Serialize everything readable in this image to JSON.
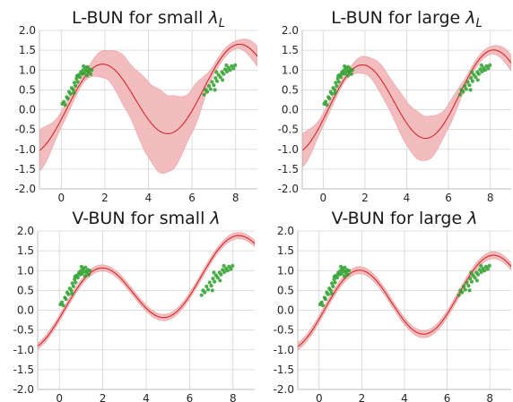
{
  "colors": {
    "mean": "#d62728",
    "band": "#f2b6b8",
    "band_edge": "#e8a0a3",
    "points": "#2ca02c",
    "grid": "#d4d4d4"
  },
  "chart_data": [
    {
      "type": "line",
      "title_prefix": "L-BUN for small ",
      "title_symbol": "λ",
      "title_subscript": "L",
      "xlim": [
        -1,
        9
      ],
      "ylim": [
        -2.0,
        2.0
      ],
      "xticks": [
        0,
        2,
        4,
        6,
        8
      ],
      "yticks": [
        "-2.0",
        "-1.5",
        "-1.0",
        "-0.5",
        "0.0",
        "0.5",
        "1.0",
        "1.5",
        "2.0"
      ],
      "grid": true,
      "mean": {
        "amp": 1.0,
        "slope": 0.08
      },
      "band_halfwidth": [
        [
          -1,
          0.52
        ],
        [
          0,
          0.2
        ],
        [
          1,
          0.1
        ],
        [
          2,
          0.35
        ],
        [
          3,
          0.65
        ],
        [
          4,
          0.95
        ],
        [
          4.5,
          1.05
        ],
        [
          5,
          0.95
        ],
        [
          6,
          0.55
        ],
        [
          7,
          0.12
        ],
        [
          8,
          0.1
        ],
        [
          9,
          0.25
        ]
      ],
      "points": "train"
    },
    {
      "type": "line",
      "title_prefix": "L-BUN for large ",
      "title_symbol": "λ",
      "title_subscript": "L",
      "xlim": [
        -1,
        9
      ],
      "ylim": [
        -2.0,
        2.0
      ],
      "xticks": [
        0,
        2,
        4,
        6,
        8
      ],
      "yticks": [
        "-2.0",
        "-1.5",
        "-1.0",
        "-0.5",
        "0.0",
        "0.5",
        "1.0",
        "1.5",
        "2.0"
      ],
      "grid": true,
      "mean": {
        "amp": 1.02,
        "slope": 0.06
      },
      "band_halfwidth": [
        [
          -1,
          0.42
        ],
        [
          0,
          0.16
        ],
        [
          1,
          0.08
        ],
        [
          2,
          0.22
        ],
        [
          3,
          0.4
        ],
        [
          4,
          0.55
        ],
        [
          4.5,
          0.6
        ],
        [
          5,
          0.55
        ],
        [
          6,
          0.3
        ],
        [
          7,
          0.1
        ],
        [
          8,
          0.1
        ],
        [
          9,
          0.2
        ]
      ],
      "points": "train"
    },
    {
      "type": "line",
      "title_prefix": "V-BUN for small ",
      "title_symbol": "λ",
      "title_subscript": "",
      "xlim": [
        -1,
        9
      ],
      "ylim": [
        -2.0,
        2.0
      ],
      "xticks": [
        0,
        2,
        4,
        6,
        8
      ],
      "yticks": [
        "-2.0",
        "-1.5",
        "-1.0",
        "-0.5",
        "0.0",
        "0.5",
        "1.0",
        "1.5",
        "2.0"
      ],
      "grid": true,
      "mean": {
        "amp": 0.82,
        "slope": 0.13
      },
      "band_halfwidth": [
        [
          -1,
          0.08
        ],
        [
          9,
          0.08
        ]
      ],
      "points": "train"
    },
    {
      "type": "line",
      "title_prefix": "V-BUN for large ",
      "title_symbol": "λ",
      "title_subscript": "",
      "xlim": [
        -1,
        9
      ],
      "ylim": [
        -2.0,
        2.0
      ],
      "xticks": [
        0,
        2,
        4,
        6,
        8
      ],
      "yticks": [
        "-2.0",
        "-1.5",
        "-1.0",
        "-0.5",
        "0.0",
        "0.5",
        "1.0",
        "1.5",
        "2.0"
      ],
      "grid": true,
      "mean": {
        "amp": 0.9,
        "slope": 0.06
      },
      "band_halfwidth": [
        [
          -1,
          0.09
        ],
        [
          9,
          0.09
        ]
      ],
      "points": "train"
    }
  ],
  "train_points": [
    [
      0.05,
      0.15
    ],
    [
      0.12,
      0.2
    ],
    [
      0.18,
      0.12
    ],
    [
      0.25,
      0.32
    ],
    [
      0.3,
      0.28
    ],
    [
      0.36,
      0.45
    ],
    [
      0.42,
      0.4
    ],
    [
      0.48,
      0.55
    ],
    [
      0.55,
      0.5
    ],
    [
      0.6,
      0.68
    ],
    [
      0.65,
      0.6
    ],
    [
      0.7,
      0.78
    ],
    [
      0.75,
      0.7
    ],
    [
      0.8,
      0.88
    ],
    [
      0.85,
      0.82
    ],
    [
      0.9,
      0.95
    ],
    [
      0.95,
      0.9
    ],
    [
      1.0,
      1.0
    ],
    [
      1.05,
      0.92
    ],
    [
      1.1,
      1.05
    ],
    [
      1.15,
      0.98
    ],
    [
      1.2,
      1.08
    ],
    [
      1.25,
      0.95
    ],
    [
      1.3,
      1.02
    ],
    [
      1.35,
      0.9
    ],
    [
      1.4,
      1.0
    ],
    [
      0.72,
      0.85
    ],
    [
      0.58,
      0.42
    ],
    [
      1.18,
      0.86
    ],
    [
      1.02,
      1.1
    ],
    [
      6.55,
      0.38
    ],
    [
      6.62,
      0.5
    ],
    [
      6.7,
      0.45
    ],
    [
      6.78,
      0.6
    ],
    [
      6.85,
      0.52
    ],
    [
      6.92,
      0.7
    ],
    [
      7.0,
      0.62
    ],
    [
      7.08,
      0.8
    ],
    [
      7.15,
      0.72
    ],
    [
      7.22,
      0.88
    ],
    [
      7.3,
      0.82
    ],
    [
      7.38,
      0.95
    ],
    [
      7.45,
      0.9
    ],
    [
      7.52,
      1.02
    ],
    [
      7.6,
      0.96
    ],
    [
      7.68,
      1.05
    ],
    [
      7.75,
      1.0
    ],
    [
      7.82,
      1.1
    ],
    [
      7.9,
      1.04
    ],
    [
      7.98,
      1.12
    ],
    [
      7.12,
      0.95
    ],
    [
      7.4,
      0.75
    ],
    [
      7.05,
      0.5
    ],
    [
      7.58,
      1.12
    ]
  ]
}
